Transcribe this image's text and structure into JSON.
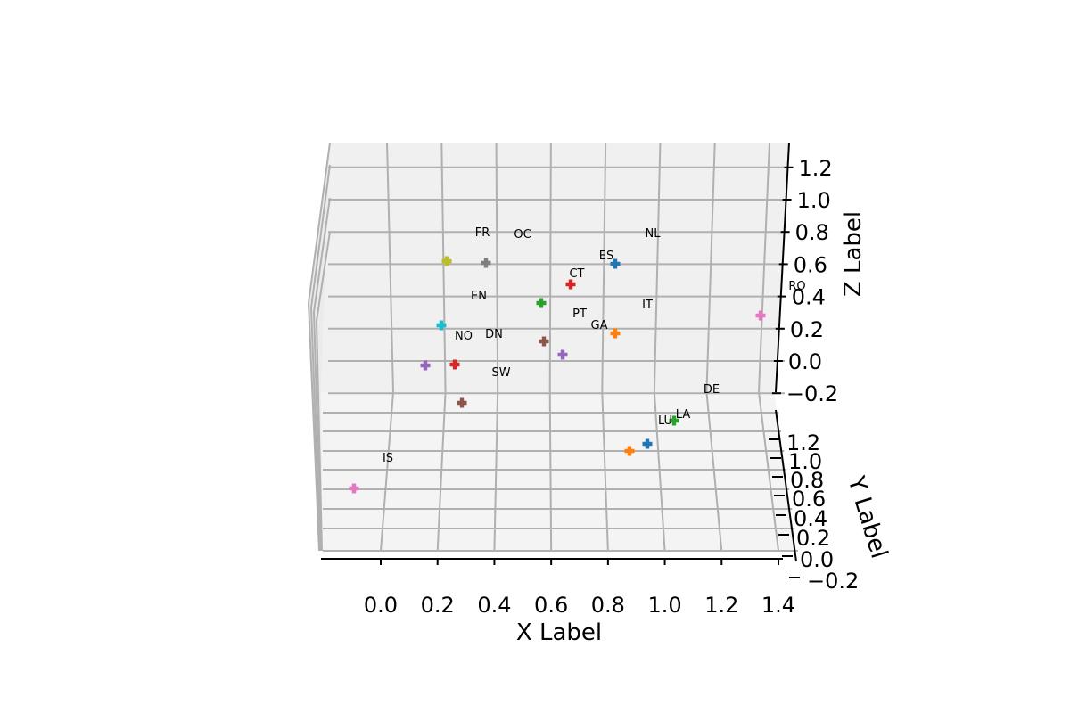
{
  "chart_data": {
    "type": "scatter3d",
    "title": "",
    "xlabel": "X Label",
    "ylabel": "Y Label",
    "zlabel": "Z Label",
    "xlim": [
      -0.2,
      1.45
    ],
    "ylim": [
      -0.2,
      1.3
    ],
    "zlim": [
      -0.2,
      1.3
    ],
    "x_ticks": [
      "0.0",
      "0.2",
      "0.4",
      "0.6",
      "0.8",
      "1.0",
      "1.2",
      "1.4"
    ],
    "y_ticks": [
      "−0.2",
      "0.0",
      "0.2",
      "0.4",
      "0.6",
      "0.8",
      "1.0",
      "1.2"
    ],
    "z_ticks": [
      "−0.2",
      "0.0",
      "0.2",
      "0.4",
      "0.6",
      "0.8",
      "1.0",
      "1.2"
    ],
    "marker": "P",
    "points": [
      {
        "label": "FR",
        "x": 0.37,
        "y": 0.93,
        "z": 0.6,
        "color": "#7f7f7f"
      },
      {
        "label": "OC",
        "x": 0.24,
        "y": 0.93,
        "z": 0.6,
        "color": "#bcbd22"
      },
      {
        "label": "NL",
        "x": 0.83,
        "y": 0.93,
        "z": 0.6,
        "color": "#1f77b4"
      },
      {
        "label": "ES",
        "x": 0.7,
        "y": 0.93,
        "z": 0.47,
        "color": "#d62728"
      },
      {
        "label": "CT",
        "x": 0.57,
        "y": 0.93,
        "z": 0.37,
        "color": "#2ca02c"
      },
      {
        "label": "EN",
        "x": 0.23,
        "y": 0.92,
        "z": 0.22,
        "color": "#17becf"
      },
      {
        "label": "RO",
        "x": 1.33,
        "y": 0.92,
        "z": 0.28,
        "color": "#e377c2"
      },
      {
        "label": "IT",
        "x": 0.83,
        "y": 0.92,
        "z": 0.17,
        "color": "#ff7f0e"
      },
      {
        "label": "PT",
        "x": 0.6,
        "y": 0.92,
        "z": 0.12,
        "color": "#8c564b"
      },
      {
        "label": "GA",
        "x": 0.64,
        "y": 0.91,
        "z": 0.03,
        "color": "#9467bd"
      },
      {
        "label": "DN",
        "x": 0.28,
        "y": 0.91,
        "z": -0.03,
        "color": "#d62728"
      },
      {
        "label": "NO",
        "x": 0.17,
        "y": 0.91,
        "z": -0.03,
        "color": "#9467bd"
      },
      {
        "label": "SW",
        "x": 0.3,
        "y": 0.9,
        "z": -0.26,
        "color": "#8c564b"
      },
      {
        "label": "DE",
        "x": 1.03,
        "y": 0.72,
        "z": -0.2,
        "color": "#2ca02c"
      },
      {
        "label": "LA",
        "x": 0.95,
        "y": 0.5,
        "z": -0.2,
        "color": "#1f77b4"
      },
      {
        "label": "LU",
        "x": 0.88,
        "y": 0.43,
        "z": -0.2,
        "color": "#ff7f0e"
      },
      {
        "label": "IS",
        "x": -0.1,
        "y": 0.13,
        "z": -0.2,
        "color": "#e377c2"
      }
    ]
  }
}
